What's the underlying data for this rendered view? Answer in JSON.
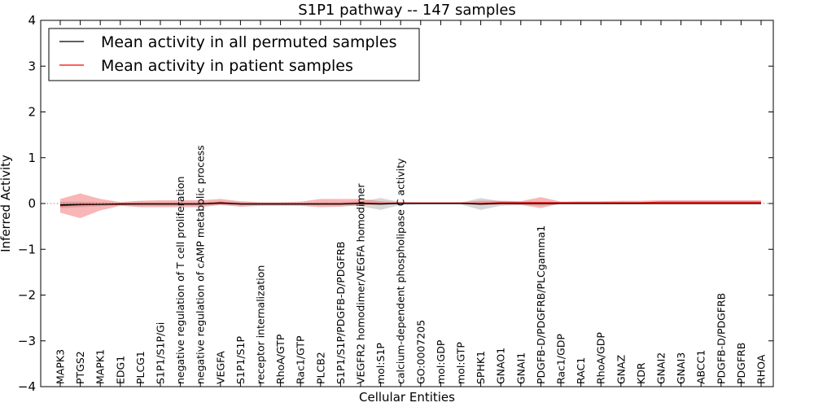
{
  "chart_data": {
    "type": "line",
    "title": "S1P1 pathway -- 147 samples",
    "xlabel": "Cellular Entities",
    "ylabel": "Inferred Activity",
    "ylim": [
      -4,
      4
    ],
    "yticks": [
      4,
      3,
      2,
      1,
      0,
      -1,
      -2,
      -3,
      -4
    ],
    "ytick_labels": [
      "4",
      "3",
      "2",
      "1",
      "0",
      "−1",
      "−2",
      "−3",
      "−4"
    ],
    "legend_position": "top-left",
    "categories": [
      "MAPK3",
      "PTGS2",
      "MAPK1",
      "EDG1",
      "PLCG1",
      "S1P1/S1P/Gi",
      "negative regulation of T cell proliferation",
      "negative regulation of cAMP metabolic process",
      "VEGFA",
      "S1P1/S1P",
      "receptor internalization",
      "RhoA/GTP",
      "Rac1/GTP",
      "PLCB2",
      "S1P1/S1P/PDGFB-D/PDGFRB",
      "VEGFR2 homodimer/VEGFA homodimer",
      "mol:S1P",
      "calcium-dependent phospholipase C activity",
      "GO:0007205",
      "mol:GDP",
      "mol:GTP",
      "SPHK1",
      "GNAO1",
      "GNAI1",
      "PDGFB-D/PDGFRB/PLCgamma1",
      "Rac1/GDP",
      "RAC1",
      "RhoA/GDP",
      "GNAZ",
      "KDR",
      "GNAI2",
      "GNAI3",
      "ABCC1",
      "PDGFB-D/PDGFRB",
      "PDGFRB",
      "RHOA"
    ],
    "series": [
      {
        "name": "Mean activity in all permuted samples",
        "color": "#000000",
        "values": [
          -0.03,
          -0.02,
          -0.02,
          -0.01,
          -0.01,
          -0.01,
          -0.01,
          -0.01,
          0.01,
          -0.01,
          -0.01,
          -0.01,
          -0.01,
          -0.01,
          -0.01,
          0.0,
          -0.01,
          0.0,
          0.0,
          0.0,
          0.0,
          -0.01,
          0.0,
          0.0,
          0.0,
          0.0,
          0.0,
          0.0,
          0.0,
          0.0,
          0.0,
          0.0,
          0.0,
          0.0,
          0.0,
          0.0
        ],
        "lower": [
          -0.1,
          -0.08,
          -0.06,
          -0.04,
          -0.05,
          -0.05,
          -0.05,
          -0.05,
          -0.03,
          -0.04,
          -0.04,
          -0.04,
          -0.04,
          -0.04,
          -0.04,
          -0.06,
          -0.14,
          -0.03,
          -0.02,
          -0.02,
          -0.02,
          -0.14,
          -0.05,
          -0.03,
          -0.05,
          -0.02,
          -0.02,
          -0.02,
          -0.02,
          -0.02,
          -0.02,
          -0.02,
          -0.02,
          -0.02,
          -0.02,
          -0.02
        ],
        "upper": [
          0.04,
          0.04,
          0.03,
          0.02,
          0.03,
          0.03,
          0.03,
          0.03,
          0.05,
          0.03,
          0.02,
          0.02,
          0.02,
          0.03,
          0.03,
          0.05,
          0.12,
          0.03,
          0.02,
          0.02,
          0.02,
          0.12,
          0.05,
          0.04,
          0.04,
          0.02,
          0.02,
          0.02,
          0.02,
          0.02,
          0.02,
          0.02,
          0.02,
          0.02,
          0.02,
          0.02
        ]
      },
      {
        "name": "Mean activity in patient samples",
        "color": "#ff0000",
        "values": [
          -0.05,
          -0.03,
          -0.02,
          -0.02,
          -0.01,
          -0.01,
          -0.01,
          -0.01,
          0.02,
          -0.01,
          -0.01,
          -0.01,
          -0.01,
          -0.01,
          -0.01,
          0.01,
          0.0,
          0.01,
          0.01,
          0.01,
          0.01,
          0.0,
          0.02,
          0.02,
          0.02,
          0.02,
          0.02,
          0.02,
          0.02,
          0.02,
          0.03,
          0.03,
          0.03,
          0.03,
          0.03,
          0.03
        ],
        "lower": [
          -0.2,
          -0.32,
          -0.15,
          -0.05,
          -0.08,
          -0.08,
          -0.08,
          -0.08,
          -0.03,
          -0.07,
          -0.05,
          -0.05,
          -0.05,
          -0.08,
          -0.07,
          -0.03,
          -0.03,
          0.0,
          0.0,
          0.0,
          0.0,
          -0.04,
          -0.02,
          -0.03,
          -0.1,
          0.0,
          0.0,
          0.0,
          0.0,
          0.0,
          0.0,
          0.0,
          0.0,
          0.0,
          0.0,
          0.0
        ],
        "upper": [
          0.1,
          0.22,
          0.1,
          0.03,
          0.06,
          0.07,
          0.07,
          0.07,
          0.1,
          0.05,
          0.03,
          0.03,
          0.04,
          0.1,
          0.1,
          0.1,
          0.05,
          0.03,
          0.03,
          0.03,
          0.03,
          0.06,
          0.06,
          0.05,
          0.14,
          0.04,
          0.05,
          0.05,
          0.06,
          0.06,
          0.07,
          0.07,
          0.07,
          0.07,
          0.07,
          0.07
        ]
      }
    ],
    "reference_line": {
      "y": 0,
      "style": "dotted",
      "color": "#666666"
    }
  }
}
